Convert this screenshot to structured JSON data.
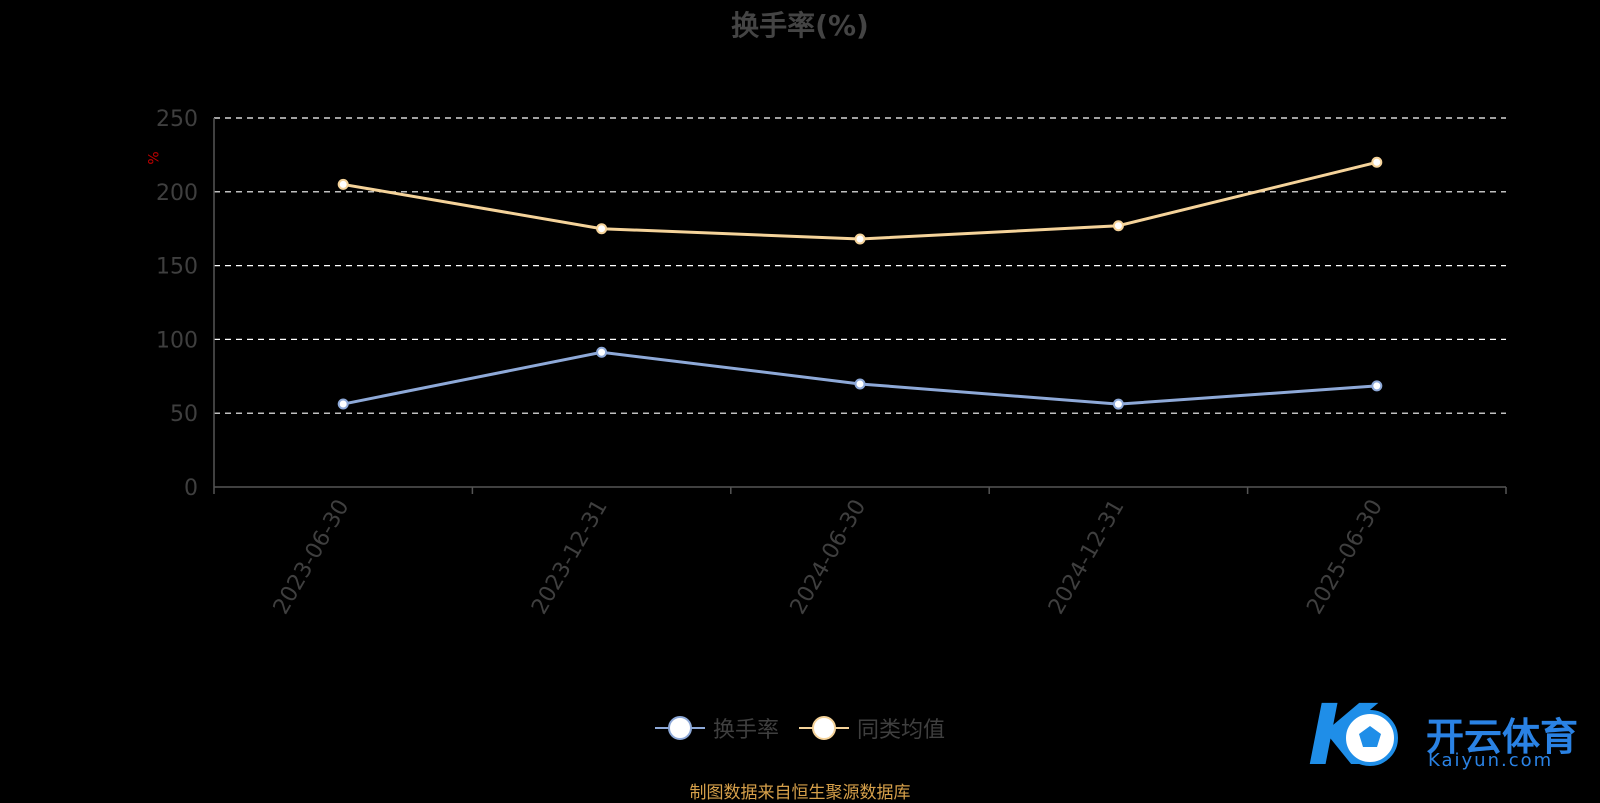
{
  "chart_data": {
    "type": "line",
    "title": "换手率(%)",
    "ylabel": "%",
    "ylim": [
      0,
      250
    ],
    "yticks": [
      0,
      50,
      100,
      150,
      200,
      250
    ],
    "categories": [
      "2023-06-30",
      "2023-12-31",
      "2024-06-30",
      "2024-12-31",
      "2025-06-30"
    ],
    "series": [
      {
        "name": "换手率",
        "values": [
          56.21,
          91.31,
          69.81,
          56.13,
          68.49
        ],
        "color": "#8ea9d8"
      },
      {
        "name": "同类均值",
        "values": [
          205,
          175,
          168,
          177,
          220
        ],
        "color": "#f5d39a"
      }
    ],
    "grid": "dashed-horizontal",
    "legend_position": "bottom-center"
  },
  "source": "制图数据来自恒生聚源数据库",
  "logo": {
    "brand": "开云体育",
    "domain": "Kaiyun.com"
  }
}
